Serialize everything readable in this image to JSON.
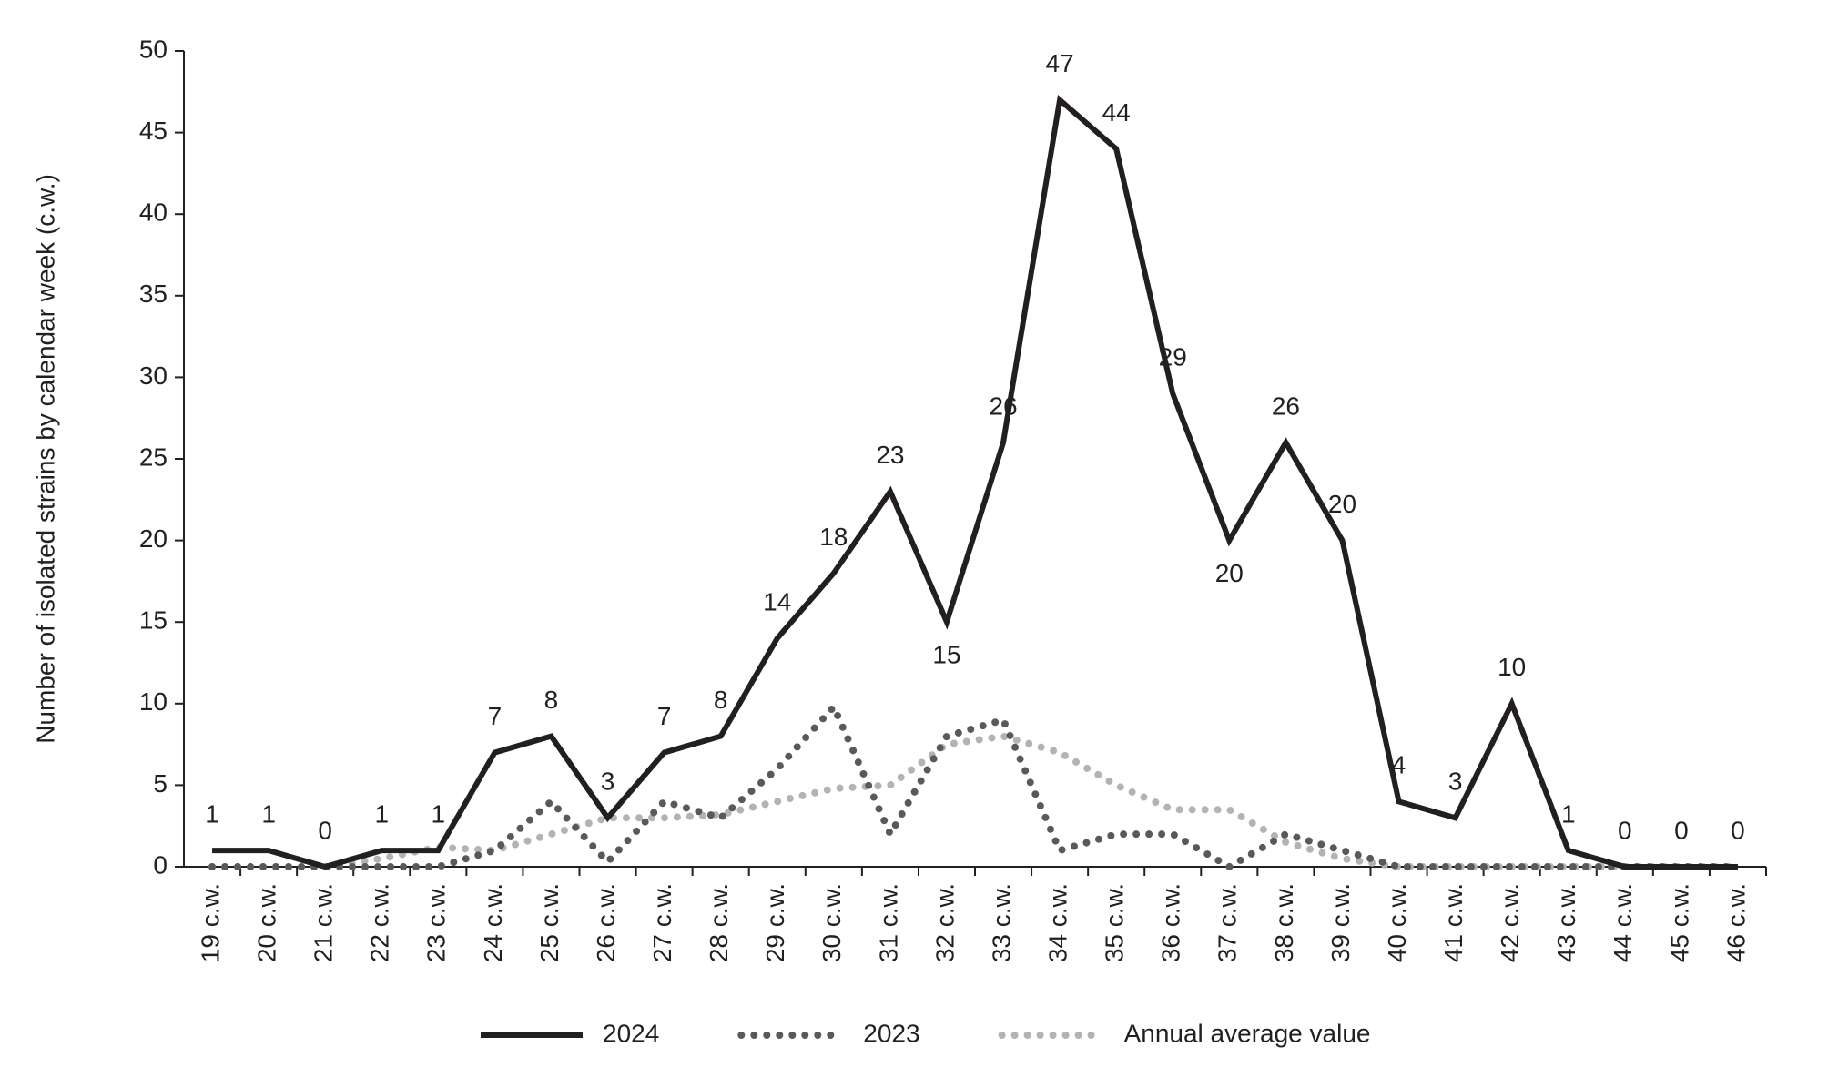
{
  "chart_data": {
    "type": "line",
    "y_label": "Number of isolated strains by calendar week (c.w.)",
    "categories": [
      "19 c.w.",
      "20 c.w.",
      "21 c.w.",
      "22 c.w.",
      "23 c.w.",
      "24 c.w.",
      "25 c.w.",
      "26 c.w.",
      "27 c.w.",
      "28 c.w.",
      "29 c.w.",
      "30 c.w.",
      "31 c.w.",
      "32 c.w.",
      "33 c.w.",
      "34 c.w.",
      "35 c.w.",
      "36 c.w.",
      "37 c.w.",
      "38 c.w.",
      "39 c.w.",
      "40 c.w.",
      "41 c.w.",
      "42 c.w.",
      "43 c.w.",
      "44 c.w.",
      "45 c.w.",
      "46 c.w."
    ],
    "series": [
      {
        "name": "2024",
        "color": "#231f20",
        "style": "solid",
        "data_labels": true,
        "values": [
          1,
          1,
          0,
          1,
          1,
          7,
          8,
          3,
          7,
          8,
          14,
          18,
          23,
          15,
          26,
          47,
          44,
          29,
          20,
          26,
          20,
          4,
          3,
          10,
          1,
          0,
          0,
          0
        ]
      },
      {
        "name": "2023",
        "color": "#58595b",
        "style": "dotted",
        "data_labels": false,
        "values": [
          0,
          0,
          0,
          0,
          0,
          1,
          4,
          0.3,
          4,
          3,
          6,
          9.8,
          2,
          8,
          9,
          1,
          2,
          2,
          0,
          2,
          1,
          0,
          0,
          0,
          0,
          0,
          0,
          0
        ]
      },
      {
        "name": "Annual average value",
        "color": "#b3b3b3",
        "style": "dotted",
        "data_labels": false,
        "values": [
          0,
          0,
          0,
          0.5,
          1.2,
          1,
          2,
          3,
          3,
          3.2,
          4,
          4.8,
          5,
          7.5,
          8,
          7,
          5,
          3.5,
          3.5,
          1.5,
          0.5,
          0,
          0,
          0,
          0,
          0,
          0,
          0
        ]
      }
    ],
    "ylim": [
      0,
      50
    ],
    "yticks": [
      0,
      5,
      10,
      15,
      20,
      25,
      30,
      35,
      40,
      45,
      50
    ],
    "grid": false
  }
}
